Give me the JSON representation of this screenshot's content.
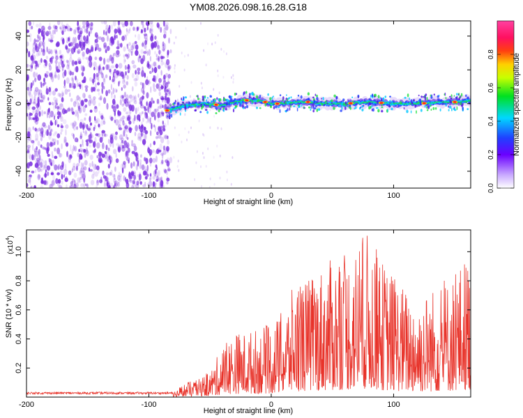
{
  "figure": {
    "title": "YM08.2026.098.16.28.G18"
  },
  "chart_data": [
    {
      "type": "heatmap",
      "xlabel": "Height of straight line (km)",
      "ylabel": "Frequency (Hz)",
      "xlim": [
        -200,
        163
      ],
      "ylim": [
        -50,
        49
      ],
      "xticks": [
        -200,
        -100,
        0,
        100
      ],
      "yticks": [
        -40,
        -20,
        0,
        20,
        40
      ],
      "noise_region": {
        "x_from": -200,
        "x_to": -82,
        "note": "broadband low-amplitude scatter"
      },
      "ridge": {
        "x": [
          -85,
          -70,
          -55,
          -40,
          -30,
          -20,
          -10,
          0,
          10,
          20,
          30,
          40,
          60,
          80,
          100,
          120,
          140,
          155,
          163
        ],
        "freq": [
          -4,
          -1,
          0,
          -1,
          1,
          2,
          2,
          0,
          0,
          1,
          1,
          0,
          0,
          1,
          0,
          0,
          1,
          1,
          2
        ],
        "peak_x": [
          -85,
          -45,
          -20,
          -5,
          5,
          30,
          65,
          90,
          125,
          150
        ]
      }
    },
    {
      "type": "line",
      "xlabel": "Height of straight line (km)",
      "ylabel": "SNR (10 * v/v)",
      "ylabel_scale": "(x10",
      "ylabel_scale_exp": "4",
      "ylabel_scale_close": ")",
      "xlim": [
        -200,
        163
      ],
      "ylim": [
        0,
        1.15
      ],
      "xticks": [
        -200,
        -100,
        0,
        100
      ],
      "yticks": [
        "0.2",
        "0.4",
        "0.6",
        "0.8",
        "1.0"
      ],
      "series": [
        {
          "name": "SNR",
          "color": "#e8332a",
          "envelope_x": [
            -200,
            -150,
            -100,
            -80,
            -70,
            -60,
            -50,
            -40,
            -30,
            -20,
            -10,
            0,
            10,
            20,
            30,
            40,
            50,
            60,
            70,
            80,
            90,
            100,
            110,
            120,
            130,
            140,
            150,
            160,
            163
          ],
          "envelope_y": [
            0.03,
            0.03,
            0.03,
            0.04,
            0.1,
            0.12,
            0.18,
            0.35,
            0.45,
            0.45,
            0.48,
            0.5,
            0.6,
            0.8,
            0.82,
            0.9,
            0.95,
            1.0,
            1.05,
            1.15,
            0.95,
            0.85,
            0.75,
            0.7,
            0.75,
            0.8,
            0.85,
            1.0,
            0.9
          ]
        }
      ]
    }
  ],
  "colorbar": {
    "label": "Normalized spectral amplitude",
    "ticks": [
      "0.0",
      "0.2",
      "0.4",
      "0.6",
      "0.8"
    ],
    "range": [
      0,
      1
    ]
  },
  "colors": {
    "axis": "#000000",
    "line": "#e8332a",
    "noise": "#7a2fe0",
    "background": "#ffffff"
  }
}
